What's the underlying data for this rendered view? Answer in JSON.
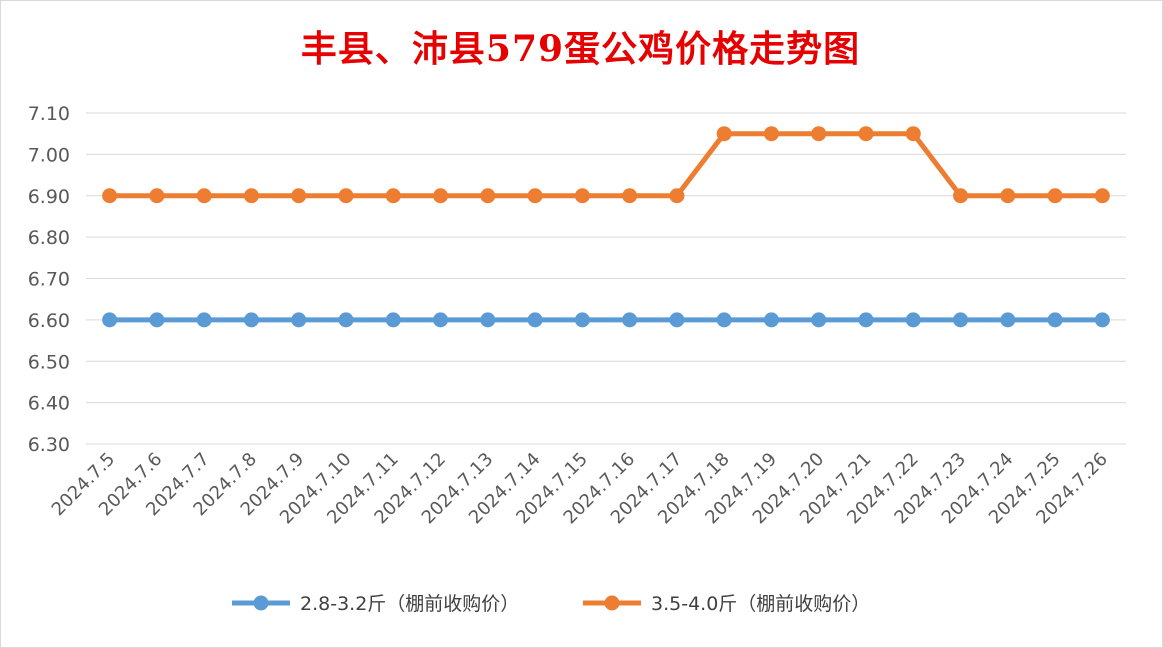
{
  "chart_data": {
    "type": "line",
    "title": "丰县、沛县579蛋公鸡价格走势图",
    "xlabel": "",
    "ylabel": "",
    "categories": [
      "2024.7.5",
      "2024.7.6",
      "2024.7.7",
      "2024.7.8",
      "2024.7.9",
      "2024.7.10",
      "2024.7.11",
      "2024.7.12",
      "2024.7.13",
      "2024.7.14",
      "2024.7.15",
      "2024.7.16",
      "2024.7.17",
      "2024.7.18",
      "2024.7.19",
      "2024.7.20",
      "2024.7.21",
      "2024.7.22",
      "2024.7.23",
      "2024.7.24",
      "2024.7.25",
      "2024.7.26"
    ],
    "y_ticks": [
      "6.30",
      "6.40",
      "6.50",
      "6.60",
      "6.70",
      "6.80",
      "6.90",
      "7.00",
      "7.10"
    ],
    "ylim": [
      6.3,
      7.1
    ],
    "grid": true,
    "legend_position": "bottom",
    "series": [
      {
        "name": "2.8-3.2斤（棚前收购价）",
        "color": "#5b9bd5",
        "values": [
          6.6,
          6.6,
          6.6,
          6.6,
          6.6,
          6.6,
          6.6,
          6.6,
          6.6,
          6.6,
          6.6,
          6.6,
          6.6,
          6.6,
          6.6,
          6.6,
          6.6,
          6.6,
          6.6,
          6.6,
          6.6,
          6.6
        ]
      },
      {
        "name": "3.5-4.0斤（棚前收购价）",
        "color": "#ed7d31",
        "values": [
          6.9,
          6.9,
          6.9,
          6.9,
          6.9,
          6.9,
          6.9,
          6.9,
          6.9,
          6.9,
          6.9,
          6.9,
          6.9,
          7.05,
          7.05,
          7.05,
          7.05,
          7.05,
          6.9,
          6.9,
          6.9,
          6.9
        ]
      }
    ]
  }
}
